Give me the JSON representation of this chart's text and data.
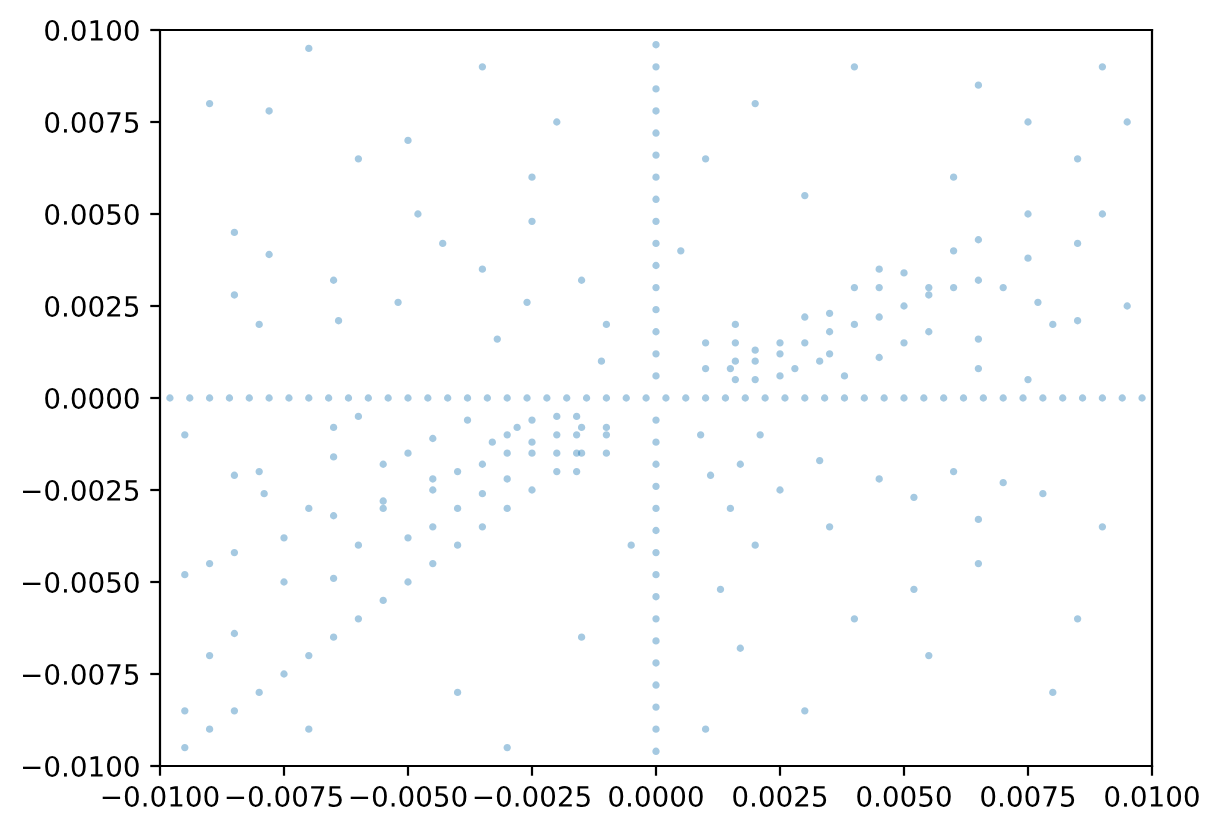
{
  "chart_data": {
    "type": "scatter",
    "marker": "circle",
    "series": [
      {
        "color": "#1f77b4",
        "x": [
          -0.0098,
          -0.0094,
          -0.009,
          -0.0086,
          -0.0082,
          -0.0078,
          -0.0074,
          -0.007,
          -0.0066,
          -0.0062,
          -0.0058,
          -0.0054,
          -0.005,
          -0.0046,
          -0.0042,
          -0.0038,
          -0.0034,
          -0.003,
          -0.0026,
          -0.0022,
          -0.0018,
          -0.0014,
          -0.001,
          -0.0006,
          -0.0002,
          0.0002,
          0.0006,
          0.001,
          0.0014,
          0.0018,
          0.0022,
          0.0026,
          0.003,
          0.0034,
          0.0038,
          0.0042,
          0.0046,
          0.005,
          0.0054,
          0.0058,
          0.0062,
          0.0066,
          0.007,
          0.0074,
          0.0078,
          0.0082,
          0.0086,
          0.009,
          0.0094,
          0.0098,
          0,
          0,
          0,
          0,
          0,
          0,
          0,
          0,
          0,
          0,
          0,
          0,
          0,
          0,
          0,
          0,
          0,
          0,
          0,
          0,
          0,
          0,
          0,
          0,
          0,
          0,
          0,
          0,
          0,
          0,
          0,
          0
        ],
        "values": [
          0,
          0,
          0,
          0,
          0,
          0,
          0,
          0,
          0,
          0,
          0,
          0,
          0,
          0,
          0,
          0,
          0,
          0,
          0,
          0,
          0,
          0,
          0,
          0,
          0,
          0,
          0,
          0,
          0,
          0,
          0,
          0,
          0,
          0,
          0,
          0,
          0,
          0,
          0,
          0,
          0,
          0,
          0,
          0,
          0,
          0,
          0,
          0,
          0,
          0,
          -0.0096,
          -0.009,
          -0.0084,
          -0.0078,
          -0.0072,
          -0.0066,
          -0.006,
          -0.0054,
          -0.0048,
          -0.0042,
          -0.0036,
          -0.003,
          -0.0024,
          -0.0018,
          -0.0012,
          -0.0006,
          0.0006,
          0.0012,
          0.0018,
          0.0024,
          0.003,
          0.0036,
          0.0042,
          0.0048,
          0.0054,
          0.006,
          0.0066,
          0.0072,
          0.0078,
          0.0084,
          0.009,
          0.0096
        ]
      },
      {
        "color": "#1f77b4",
        "x": [
          -0.0095,
          -0.0085,
          -0.0075,
          -0.0065,
          -0.0055,
          -0.0045,
          -0.0035,
          -0.0025,
          -0.0015,
          0.006,
          0.0075,
          0.009,
          -0.009,
          -0.008,
          -0.007,
          -0.006,
          -0.005,
          -0.004,
          -0.003,
          -0.002,
          -0.001,
          -0.0095,
          -0.0085,
          -0.0065,
          -0.0045,
          -0.003,
          -0.002,
          0.002,
          0.003,
          0.0045,
          0.0055,
          0.0065,
          0.0085,
          -0.009,
          -0.0075,
          -0.0055,
          -0.004,
          -0.0025,
          -0.0015,
          0.0015,
          0.0025,
          0.004,
          0.005,
          0.006,
          0.0075,
          -0.0085,
          -0.0065,
          -0.005,
          -0.0035,
          -0.002,
          -0.0085,
          -0.0065,
          -0.0045,
          -0.0025,
          0.0025,
          0.0045,
          0.0065,
          0.0085,
          -0.0079,
          -0.0055,
          -0.003,
          0.0035,
          0.0055,
          0.0077,
          0.002,
          0.0035,
          0.005,
          0.0065,
          0.0009,
          0.0017,
          0.0025,
          0.0035,
          0.0052,
          0.0021,
          0.0033,
          0.0045,
          0.0052,
          0.0065,
          0.006,
          0.007,
          0.0078,
          0.0011,
          0.0015,
          0.002,
          0.0013,
          0.0017,
          -0.0011,
          -0.0026,
          -0.0043,
          -0.0048,
          -0.0078,
          -0.0035,
          -0.0032,
          -0.0052,
          -0.0065,
          -0.0078,
          -0.0064,
          -0.0085,
          -0.0015,
          -0.0025,
          -0.001,
          0.0016,
          0.0016,
          0.0016,
          0.0016,
          -0.0016,
          -0.0016,
          -0.0016,
          -0.0016,
          0.001,
          0.001,
          -0.001,
          -0.001,
          0.0033,
          -0.0033
        ],
        "values": [
          -0.0095,
          -0.0085,
          -0.0075,
          -0.0065,
          -0.0055,
          -0.0045,
          -0.0035,
          -0.0025,
          -0.0015,
          0.006,
          0.0075,
          0.009,
          -0.009,
          -0.008,
          -0.007,
          -0.006,
          -0.005,
          -0.004,
          -0.003,
          -0.002,
          -0.001,
          -0.0048,
          -0.0042,
          -0.0032,
          -0.0022,
          -0.0015,
          -0.001,
          0.001,
          0.0015,
          0.0022,
          0.0028,
          0.0032,
          0.0042,
          -0.0045,
          -0.0038,
          -0.0028,
          -0.002,
          -0.0012,
          -0.0008,
          0.0008,
          0.0012,
          0.002,
          0.0025,
          0.003,
          0.0038,
          -0.0064,
          -0.0049,
          -0.0038,
          -0.0026,
          -0.0015,
          -0.0021,
          -0.0016,
          -0.0011,
          -0.0006,
          0.0006,
          0.0011,
          0.0016,
          0.0021,
          -0.0026,
          -0.0018,
          -0.001,
          0.0012,
          0.0018,
          0.0026,
          0.0013,
          0.0023,
          0.0034,
          0.0043,
          -0.001,
          -0.0018,
          -0.0025,
          -0.0035,
          -0.0052,
          -0.001,
          -0.0017,
          -0.0022,
          -0.0027,
          -0.0033,
          -0.002,
          -0.0023,
          -0.0026,
          -0.0021,
          -0.003,
          -0.004,
          -0.0052,
          -0.0068,
          0.001,
          0.0026,
          0.0042,
          0.005,
          0.0078,
          0.0035,
          0.0016,
          0.0026,
          0.0032,
          0.0039,
          0.0021,
          0.0028,
          0.0032,
          0.0048,
          0.002,
          0.0005,
          0.001,
          0.0015,
          0.002,
          -0.0005,
          -0.001,
          -0.0015,
          -0.002,
          0.0008,
          0.0015,
          -0.0008,
          -0.0015,
          0.001,
          -0.0012
        ]
      },
      {
        "color": "#1f77b4",
        "x": [
          -0.009,
          -0.006,
          -0.0035,
          -0.002,
          -0.0085,
          0.002,
          0.004,
          0.0085,
          0.009,
          0.0095,
          0.003,
          0.0055,
          0.0085,
          0.003,
          0.009,
          -0.009,
          -0.007,
          -0.004,
          -0.0015,
          -0.0095,
          0.0075,
          -0.006,
          0.0045,
          -0.0045,
          -0.007,
          -0.006,
          -0.005,
          -0.004,
          -0.0035,
          -0.003,
          -0.0025,
          -0.002,
          -0.0028,
          -0.0055,
          -0.0075,
          -0.008,
          -0.0065,
          -0.0045,
          -0.0038,
          0.007,
          0.006,
          0.005,
          0.004,
          0.0035,
          0.003,
          0.0025,
          0.002,
          0.0028,
          0.0055,
          0.0075,
          0.008,
          0.0065,
          0.0045,
          0.0038,
          -0.008,
          -0.005,
          -0.0025,
          -0.007,
          0.001,
          0.0065,
          0.0095,
          0.008,
          0.0065,
          0.004,
          0.001,
          -0.003,
          -0.0095,
          -0.0005,
          0.0005
        ],
        "values": [
          0.008,
          0.0065,
          0.009,
          0.0075,
          0.0045,
          0.008,
          0.009,
          0.0065,
          0.005,
          0.0025,
          0.0055,
          -0.007,
          -0.006,
          -0.0085,
          -0.0035,
          -0.007,
          -0.009,
          -0.008,
          -0.0065,
          -0.001,
          0.0005,
          -0.0005,
          0.003,
          -0.0025,
          -0.003,
          -0.004,
          -0.0015,
          -0.003,
          -0.0018,
          -0.0022,
          -0.0015,
          -0.0005,
          -0.0008,
          -0.003,
          -0.005,
          -0.002,
          -0.0008,
          -0.0035,
          -0.0006,
          0.003,
          0.004,
          0.0015,
          0.003,
          0.0018,
          0.0022,
          0.0015,
          0.0005,
          0.0008,
          0.003,
          0.005,
          0.002,
          0.0008,
          0.0035,
          0.0006,
          0.002,
          0.007,
          0.006,
          0.0095,
          0.0065,
          0.0085,
          0.0075,
          -0.008,
          -0.0045,
          -0.006,
          -0.009,
          -0.0095,
          -0.0085,
          -0.004,
          0.004
        ]
      }
    ],
    "xlim": [
      -0.01,
      0.01
    ],
    "ylim": [
      -0.01,
      0.01
    ],
    "xticks": [
      {
        "value": -0.01,
        "label": "−0.0100"
      },
      {
        "value": -0.0075,
        "label": "−0.0075"
      },
      {
        "value": -0.005,
        "label": "−0.0050"
      },
      {
        "value": -0.0025,
        "label": "−0.0025"
      },
      {
        "value": 0,
        "label": "0.0000"
      },
      {
        "value": 0.0025,
        "label": "0.0025"
      },
      {
        "value": 0.005,
        "label": "0.0050"
      },
      {
        "value": 0.0075,
        "label": "0.0075"
      },
      {
        "value": 0.01,
        "label": "0.0100"
      }
    ],
    "yticks": [
      {
        "value": -0.01,
        "label": "−0.0100"
      },
      {
        "value": -0.0075,
        "label": "−0.0075"
      },
      {
        "value": -0.005,
        "label": "−0.0050"
      },
      {
        "value": -0.0025,
        "label": "−0.0025"
      },
      {
        "value": 0,
        "label": "0.0000"
      },
      {
        "value": 0.0025,
        "label": "0.0025"
      },
      {
        "value": 0.005,
        "label": "0.0050"
      },
      {
        "value": 0.0075,
        "label": "0.0075"
      },
      {
        "value": 0.01,
        "label": "0.0100"
      }
    ]
  }
}
